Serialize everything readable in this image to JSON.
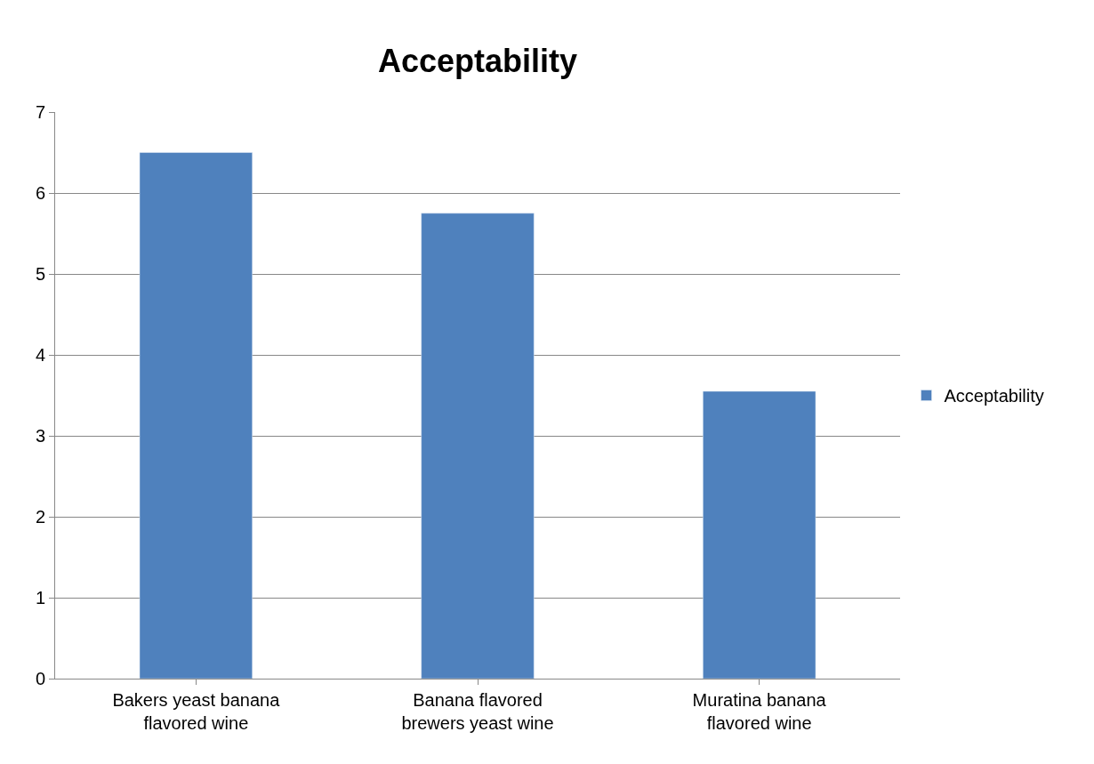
{
  "chart_data": {
    "type": "bar",
    "title": "Acceptability",
    "categories": [
      "Bakers yeast banana flavored wine",
      "Banana flavored brewers yeast wine",
      "Muratina banana flavored wine"
    ],
    "series": [
      {
        "name": "Acceptability",
        "color": "#4f81bd",
        "values": [
          6.5,
          5.75,
          3.55
        ]
      }
    ],
    "ylim": [
      0,
      7
    ],
    "yticks": [
      0,
      1,
      2,
      3,
      4,
      5,
      6,
      7
    ],
    "grid": "y",
    "legend": "right"
  }
}
